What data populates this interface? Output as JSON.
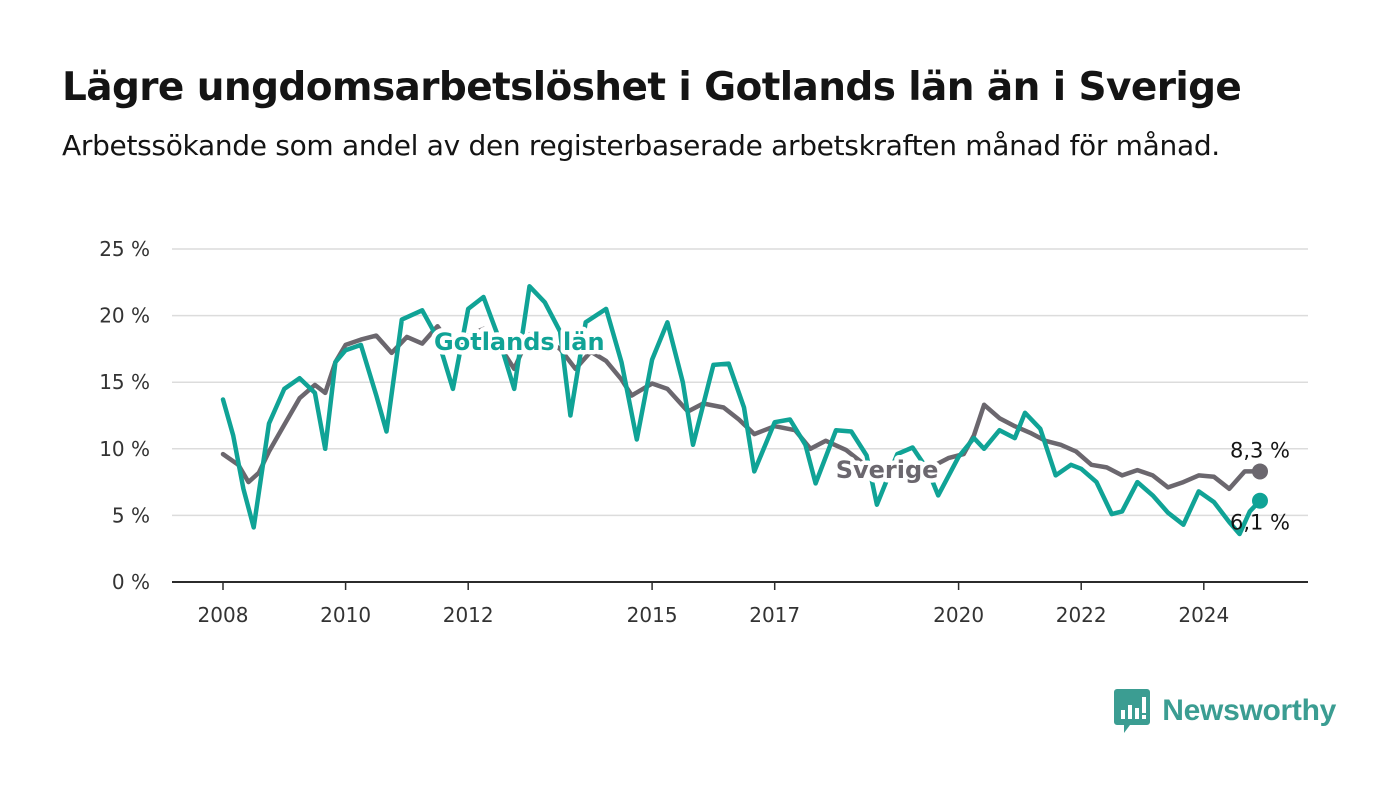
{
  "title": "Lägre ungdomsarbetslöshet i Gotlands län än i Sverige",
  "subtitle": "Arbetssökande som andel av den registerbaserade arbetskraften månad för månad.",
  "brand": {
    "name": "Newsworthy",
    "color": "#3b9d92",
    "icon": "bar-chart-speech-bubble-icon"
  },
  "chart_data": {
    "type": "line",
    "title": "Lägre ungdomsarbetslöshet i Gotlands län än i Sverige",
    "subtitle": "Arbetssökande som andel av den registerbaserade arbetskraften månad för månad.",
    "xlabel": "",
    "ylabel": "",
    "x_range": [
      "2008-01",
      "2025-03"
    ],
    "ylim": [
      0,
      25
    ],
    "y_ticks": [
      0,
      5,
      10,
      15,
      20,
      25
    ],
    "y_tick_labels": [
      "0 %",
      "5 %",
      "10 %",
      "15 %",
      "20 %",
      "25 %"
    ],
    "x_ticks": [
      2008,
      2010,
      2012,
      2015,
      2017,
      2020,
      2022,
      2024
    ],
    "x_tick_labels": [
      "2008",
      "2010",
      "2012",
      "2015",
      "2017",
      "2020",
      "2022",
      "2024"
    ],
    "grid": "horizontal",
    "legend": "none",
    "series": [
      {
        "name": "Sverige",
        "color": "#6b676e",
        "label_at": [
          "2018-11",
          8.4
        ],
        "end_label": "8,3 %",
        "points": [
          [
            "2008-01",
            9.6
          ],
          [
            "2008-04",
            8.8
          ],
          [
            "2008-06",
            7.5
          ],
          [
            "2008-08",
            8.2
          ],
          [
            "2008-10",
            9.8
          ],
          [
            "2009-01",
            11.8
          ],
          [
            "2009-04",
            13.8
          ],
          [
            "2009-07",
            14.8
          ],
          [
            "2009-09",
            14.2
          ],
          [
            "2009-11",
            16.5
          ],
          [
            "2010-01",
            17.8
          ],
          [
            "2010-04",
            18.2
          ],
          [
            "2010-07",
            18.5
          ],
          [
            "2010-10",
            17.2
          ],
          [
            "2011-01",
            18.4
          ],
          [
            "2011-04",
            17.9
          ],
          [
            "2011-07",
            19.2
          ],
          [
            "2011-10",
            17.6
          ],
          [
            "2012-01",
            18.5
          ],
          [
            "2012-04",
            19.0
          ],
          [
            "2012-07",
            17.8
          ],
          [
            "2012-10",
            16.0
          ],
          [
            "2013-01",
            18.6
          ],
          [
            "2013-04",
            18.2
          ],
          [
            "2013-07",
            17.5
          ],
          [
            "2013-10",
            16.0
          ],
          [
            "2014-01",
            17.3
          ],
          [
            "2014-04",
            16.6
          ],
          [
            "2014-07",
            15.2
          ],
          [
            "2014-09",
            14.0
          ],
          [
            "2015-01",
            14.9
          ],
          [
            "2015-04",
            14.5
          ],
          [
            "2015-08",
            12.8
          ],
          [
            "2015-11",
            13.4
          ],
          [
            "2016-03",
            13.1
          ],
          [
            "2016-06",
            12.2
          ],
          [
            "2016-09",
            11.1
          ],
          [
            "2017-01",
            11.7
          ],
          [
            "2017-05",
            11.4
          ],
          [
            "2017-08",
            10.0
          ],
          [
            "2017-11",
            10.6
          ],
          [
            "2018-03",
            9.9
          ],
          [
            "2018-07",
            8.7
          ],
          [
            "2018-11",
            8.4
          ],
          [
            "2019-03",
            8.8
          ],
          [
            "2019-07",
            8.5
          ],
          [
            "2019-11",
            9.3
          ],
          [
            "2020-02",
            9.6
          ],
          [
            "2020-04",
            11.0
          ],
          [
            "2020-06",
            13.3
          ],
          [
            "2020-09",
            12.3
          ],
          [
            "2020-12",
            11.7
          ],
          [
            "2021-03",
            11.2
          ],
          [
            "2021-06",
            10.6
          ],
          [
            "2021-09",
            10.3
          ],
          [
            "2021-12",
            9.8
          ],
          [
            "2022-03",
            8.8
          ],
          [
            "2022-06",
            8.6
          ],
          [
            "2022-09",
            8.0
          ],
          [
            "2022-12",
            8.4
          ],
          [
            "2023-03",
            8.0
          ],
          [
            "2023-06",
            7.1
          ],
          [
            "2023-09",
            7.5
          ],
          [
            "2023-12",
            8.0
          ],
          [
            "2024-03",
            7.9
          ],
          [
            "2024-06",
            7.0
          ],
          [
            "2024-09",
            8.3
          ],
          [
            "2024-12",
            8.3
          ]
        ]
      },
      {
        "name": "Gotlands län",
        "color": "#10a396",
        "label_at": [
          "2012-11",
          18.0
        ],
        "end_label": "6,1 %",
        "points": [
          [
            "2008-01",
            13.7
          ],
          [
            "2008-03",
            11.0
          ],
          [
            "2008-05",
            7.0
          ],
          [
            "2008-07",
            4.1
          ],
          [
            "2008-10",
            11.9
          ],
          [
            "2009-01",
            14.5
          ],
          [
            "2009-04",
            15.3
          ],
          [
            "2009-07",
            14.2
          ],
          [
            "2009-09",
            10.0
          ],
          [
            "2009-11",
            16.5
          ],
          [
            "2010-01",
            17.4
          ],
          [
            "2010-04",
            17.8
          ],
          [
            "2010-07",
            14.0
          ],
          [
            "2010-09",
            11.3
          ],
          [
            "2010-12",
            19.7
          ],
          [
            "2011-04",
            20.4
          ],
          [
            "2011-07",
            18.3
          ],
          [
            "2011-10",
            14.5
          ],
          [
            "2012-01",
            20.5
          ],
          [
            "2012-04",
            21.4
          ],
          [
            "2012-07",
            18.3
          ],
          [
            "2012-10",
            14.5
          ],
          [
            "2013-01",
            22.2
          ],
          [
            "2013-04",
            21.0
          ],
          [
            "2013-07",
            18.8
          ],
          [
            "2013-09",
            12.5
          ],
          [
            "2013-12",
            19.5
          ],
          [
            "2014-04",
            20.5
          ],
          [
            "2014-07",
            16.5
          ],
          [
            "2014-10",
            10.7
          ],
          [
            "2015-01",
            16.7
          ],
          [
            "2015-04",
            19.5
          ],
          [
            "2015-07",
            15.0
          ],
          [
            "2015-09",
            10.3
          ],
          [
            "2016-01",
            16.3
          ],
          [
            "2016-04",
            16.4
          ],
          [
            "2016-07",
            13.1
          ],
          [
            "2016-09",
            8.3
          ],
          [
            "2017-01",
            12.0
          ],
          [
            "2017-04",
            12.2
          ],
          [
            "2017-07",
            10.3
          ],
          [
            "2017-09",
            7.4
          ],
          [
            "2018-01",
            11.4
          ],
          [
            "2018-04",
            11.3
          ],
          [
            "2018-07",
            9.5
          ],
          [
            "2018-09",
            5.8
          ],
          [
            "2019-01",
            9.6
          ],
          [
            "2019-04",
            10.1
          ],
          [
            "2019-07",
            8.4
          ],
          [
            "2019-09",
            6.5
          ],
          [
            "2020-01",
            9.4
          ],
          [
            "2020-04",
            10.8
          ],
          [
            "2020-06",
            10.0
          ],
          [
            "2020-09",
            11.4
          ],
          [
            "2020-12",
            10.8
          ],
          [
            "2021-02",
            12.7
          ],
          [
            "2021-05",
            11.5
          ],
          [
            "2021-08",
            8.0
          ],
          [
            "2021-11",
            8.8
          ],
          [
            "2022-01",
            8.5
          ],
          [
            "2022-04",
            7.5
          ],
          [
            "2022-07",
            5.1
          ],
          [
            "2022-09",
            5.3
          ],
          [
            "2022-12",
            7.5
          ],
          [
            "2023-03",
            6.5
          ],
          [
            "2023-06",
            5.2
          ],
          [
            "2023-09",
            4.3
          ],
          [
            "2023-12",
            6.8
          ],
          [
            "2024-03",
            6.0
          ],
          [
            "2024-06",
            4.5
          ],
          [
            "2024-08",
            3.6
          ],
          [
            "2024-10",
            5.3
          ],
          [
            "2024-12",
            6.1
          ]
        ]
      }
    ]
  }
}
